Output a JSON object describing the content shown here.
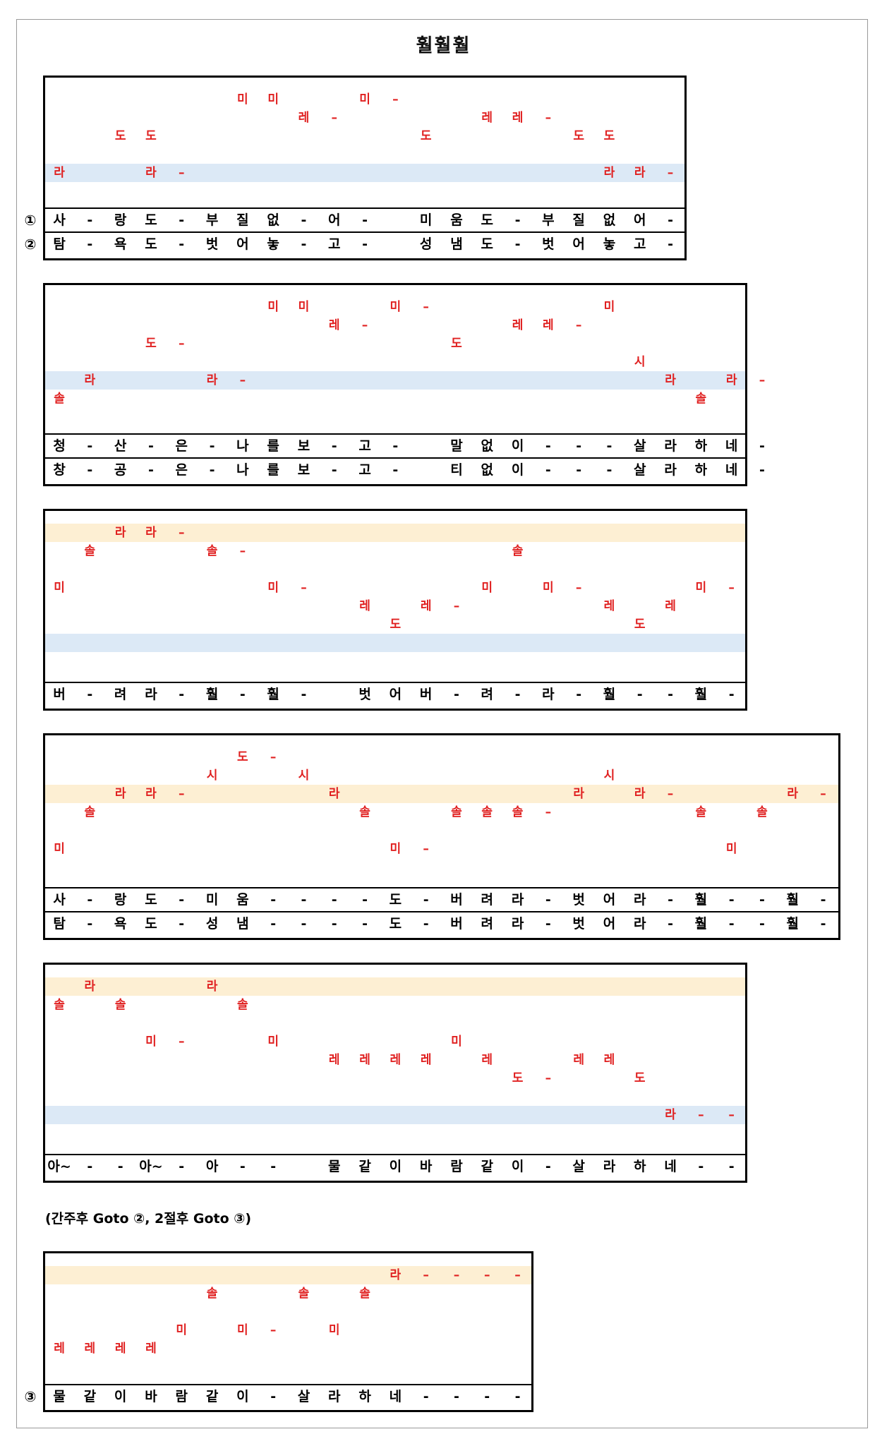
{
  "title": "훨훨훨",
  "instruction": "(간주후 Goto ②, 2절후 Goto ③)",
  "blocks": [
    {
      "notes": [
        {
          "t": "미",
          "c": 6,
          "r": 1
        },
        {
          "t": "미",
          "c": 7,
          "r": 1
        },
        {
          "t": "미",
          "c": 10,
          "r": 1
        },
        {
          "t": "–",
          "c": 11,
          "r": 1
        },
        {
          "t": "레",
          "c": 8,
          "r": 2
        },
        {
          "t": "–",
          "c": 9,
          "r": 2
        },
        {
          "t": "레",
          "c": 14,
          "r": 2
        },
        {
          "t": "레",
          "c": 15,
          "r": 2
        },
        {
          "t": "–",
          "c": 16,
          "r": 2
        },
        {
          "t": "도",
          "c": 2,
          "r": 3
        },
        {
          "t": "도",
          "c": 3,
          "r": 3
        },
        {
          "t": "도",
          "c": 12,
          "r": 3
        },
        {
          "t": "도",
          "c": 17,
          "r": 3
        },
        {
          "t": "도",
          "c": 18,
          "r": 3
        },
        {
          "t": "라",
          "c": 0,
          "r": 5
        },
        {
          "t": "라",
          "c": 3,
          "r": 5
        },
        {
          "t": "–",
          "c": 4,
          "r": 5
        },
        {
          "t": "라",
          "c": 18,
          "r": 5
        },
        {
          "t": "라",
          "c": 19,
          "r": 5
        },
        {
          "t": "–",
          "c": 20,
          "r": 5
        }
      ],
      "lyrics": [
        {
          "mark": "①",
          "cells": [
            "사",
            "-",
            "랑",
            "도",
            "-",
            "부",
            "질",
            "없",
            "-",
            "어",
            "-",
            "",
            "미",
            "움",
            "도",
            "-",
            "부",
            "질",
            "없",
            "어",
            "-"
          ]
        },
        {
          "mark": "②",
          "cells": [
            "탐",
            "-",
            "욕",
            "도",
            "-",
            "벗",
            "어",
            "놓",
            "-",
            "고",
            "-",
            "",
            "성",
            "냄",
            "도",
            "-",
            "벗",
            "어",
            "놓",
            "고",
            "-"
          ]
        }
      ]
    },
    {
      "notes": [
        {
          "t": "미",
          "c": 7,
          "r": 1
        },
        {
          "t": "미",
          "c": 8,
          "r": 1
        },
        {
          "t": "미",
          "c": 11,
          "r": 1
        },
        {
          "t": "–",
          "c": 12,
          "r": 1
        },
        {
          "t": "미",
          "c": 18,
          "r": 1
        },
        {
          "t": "레",
          "c": 9,
          "r": 2
        },
        {
          "t": "–",
          "c": 10,
          "r": 2
        },
        {
          "t": "레",
          "c": 15,
          "r": 2
        },
        {
          "t": "레",
          "c": 16,
          "r": 2
        },
        {
          "t": "–",
          "c": 17,
          "r": 2
        },
        {
          "t": "도",
          "c": 3,
          "r": 3
        },
        {
          "t": "–",
          "c": 4,
          "r": 3
        },
        {
          "t": "도",
          "c": 13,
          "r": 3
        },
        {
          "t": "시",
          "c": 19,
          "r": 4
        },
        {
          "t": "라",
          "c": 1,
          "r": 5
        },
        {
          "t": "라",
          "c": 5,
          "r": 5
        },
        {
          "t": "–",
          "c": 6,
          "r": 5
        },
        {
          "t": "라",
          "c": 20,
          "r": 5
        },
        {
          "t": "라",
          "c": 22,
          "r": 5
        },
        {
          "t": "–",
          "c": 23,
          "r": 5
        },
        {
          "t": "솔",
          "c": 0,
          "r": 6
        },
        {
          "t": "솔",
          "c": 21,
          "r": 6
        }
      ],
      "lyrics": [
        {
          "mark": "",
          "cells": [
            "청",
            "-",
            "산",
            "-",
            "은",
            "-",
            "나",
            "를",
            "보",
            "-",
            "고",
            "-",
            "",
            "말",
            "없",
            "이",
            "-",
            "-",
            "-",
            "살",
            "라",
            "하",
            "네",
            "-"
          ]
        },
        {
          "mark": "",
          "cells": [
            "창",
            "-",
            "공",
            "-",
            "은",
            "-",
            "나",
            "를",
            "보",
            "-",
            "고",
            "-",
            "",
            "티",
            "없",
            "이",
            "-",
            "-",
            "-",
            "살",
            "라",
            "하",
            "네",
            "-"
          ]
        }
      ]
    },
    {
      "notes": [
        {
          "t": "라",
          "c": 2,
          "r": 1
        },
        {
          "t": "라",
          "c": 3,
          "r": 1
        },
        {
          "t": "–",
          "c": 4,
          "r": 1
        },
        {
          "t": "솔",
          "c": 1,
          "r": 2
        },
        {
          "t": "솔",
          "c": 5,
          "r": 2
        },
        {
          "t": "–",
          "c": 6,
          "r": 2
        },
        {
          "t": "솔",
          "c": 15,
          "r": 2
        },
        {
          "t": "미",
          "c": 0,
          "r": 4
        },
        {
          "t": "미",
          "c": 7,
          "r": 4
        },
        {
          "t": "–",
          "c": 8,
          "r": 4
        },
        {
          "t": "미",
          "c": 14,
          "r": 4
        },
        {
          "t": "미",
          "c": 16,
          "r": 4
        },
        {
          "t": "–",
          "c": 17,
          "r": 4
        },
        {
          "t": "미",
          "c": 21,
          "r": 4
        },
        {
          "t": "–",
          "c": 22,
          "r": 4
        },
        {
          "t": "레",
          "c": 10,
          "r": 5
        },
        {
          "t": "레",
          "c": 12,
          "r": 5
        },
        {
          "t": "–",
          "c": 13,
          "r": 5
        },
        {
          "t": "레",
          "c": 18,
          "r": 5
        },
        {
          "t": "레",
          "c": 20,
          "r": 5
        },
        {
          "t": "도",
          "c": 11,
          "r": 6
        },
        {
          "t": "도",
          "c": 19,
          "r": 6
        }
      ],
      "lyrics": [
        {
          "mark": "",
          "cells": [
            "버",
            "-",
            "려",
            "라",
            "-",
            "훨",
            "-",
            "훨",
            "-",
            "",
            "벗",
            "어",
            "버",
            "-",
            "려",
            "-",
            "라",
            "-",
            "훨",
            "-",
            "-",
            "훨",
            "-"
          ]
        }
      ]
    },
    {
      "notes": [
        {
          "t": "도",
          "c": 6,
          "r": 1
        },
        {
          "t": "–",
          "c": 7,
          "r": 1
        },
        {
          "t": "시",
          "c": 5,
          "r": 2
        },
        {
          "t": "시",
          "c": 8,
          "r": 2
        },
        {
          "t": "시",
          "c": 18,
          "r": 2
        },
        {
          "t": "라",
          "c": 2,
          "r": 3
        },
        {
          "t": "라",
          "c": 3,
          "r": 3
        },
        {
          "t": "–",
          "c": 4,
          "r": 3
        },
        {
          "t": "라",
          "c": 9,
          "r": 3
        },
        {
          "t": "라",
          "c": 17,
          "r": 3
        },
        {
          "t": "라",
          "c": 19,
          "r": 3
        },
        {
          "t": "–",
          "c": 20,
          "r": 3
        },
        {
          "t": "라",
          "c": 24,
          "r": 3
        },
        {
          "t": "–",
          "c": 25,
          "r": 3
        },
        {
          "t": "솔",
          "c": 1,
          "r": 4
        },
        {
          "t": "솔",
          "c": 10,
          "r": 4
        },
        {
          "t": "솔",
          "c": 13,
          "r": 4
        },
        {
          "t": "솔",
          "c": 14,
          "r": 4
        },
        {
          "t": "솔",
          "c": 15,
          "r": 4
        },
        {
          "t": "–",
          "c": 16,
          "r": 4
        },
        {
          "t": "솔",
          "c": 21,
          "r": 4
        },
        {
          "t": "솔",
          "c": 23,
          "r": 4
        },
        {
          "t": "미",
          "c": 0,
          "r": 6
        },
        {
          "t": "미",
          "c": 11,
          "r": 6
        },
        {
          "t": "–",
          "c": 12,
          "r": 6
        },
        {
          "t": "미",
          "c": 22,
          "r": 6
        }
      ],
      "lyrics": [
        {
          "mark": "",
          "cells": [
            "사",
            "-",
            "랑",
            "도",
            "-",
            "미",
            "움",
            "-",
            "-",
            "-",
            "-",
            "도",
            "-",
            "버",
            "려",
            "라",
            "-",
            "벗",
            "어",
            "라",
            "-",
            "훨",
            "-",
            "-",
            "훨",
            "-"
          ]
        },
        {
          "mark": "",
          "cells": [
            "탐",
            "-",
            "욕",
            "도",
            "-",
            "성",
            "냄",
            "-",
            "-",
            "-",
            "-",
            "도",
            "-",
            "버",
            "려",
            "라",
            "-",
            "벗",
            "어",
            "라",
            "-",
            "훨",
            "-",
            "-",
            "훨",
            "-"
          ]
        }
      ]
    },
    {
      "notes": [
        {
          "t": "라",
          "c": 1,
          "r": 1
        },
        {
          "t": "라",
          "c": 5,
          "r": 1
        },
        {
          "t": "솔",
          "c": 0,
          "r": 2
        },
        {
          "t": "솔",
          "c": 2,
          "r": 2
        },
        {
          "t": "솔",
          "c": 6,
          "r": 2
        },
        {
          "t": "미",
          "c": 3,
          "r": 4
        },
        {
          "t": "–",
          "c": 4,
          "r": 4
        },
        {
          "t": "미",
          "c": 7,
          "r": 4
        },
        {
          "t": "미",
          "c": 13,
          "r": 4
        },
        {
          "t": "레",
          "c": 9,
          "r": 5
        },
        {
          "t": "레",
          "c": 10,
          "r": 5
        },
        {
          "t": "레",
          "c": 11,
          "r": 5
        },
        {
          "t": "레",
          "c": 12,
          "r": 5
        },
        {
          "t": "레",
          "c": 14,
          "r": 5
        },
        {
          "t": "레",
          "c": 17,
          "r": 5
        },
        {
          "t": "레",
          "c": 18,
          "r": 5
        },
        {
          "t": "도",
          "c": 15,
          "r": 6
        },
        {
          "t": "–",
          "c": 16,
          "r": 6
        },
        {
          "t": "도",
          "c": 19,
          "r": 6
        },
        {
          "t": "라",
          "c": 20,
          "r": 8
        },
        {
          "t": "–",
          "c": 21,
          "r": 8
        },
        {
          "t": "–",
          "c": 22,
          "r": 8
        }
      ],
      "lyrics": [
        {
          "mark": "",
          "cells": [
            "아~",
            "-",
            "-",
            "아~",
            "-",
            "아",
            "-",
            "-",
            "",
            "물",
            "같",
            "이",
            "바",
            "람",
            "같",
            "이",
            "-",
            "살",
            "라",
            "하",
            "네",
            "-",
            "-"
          ]
        }
      ]
    },
    {
      "notes": [
        {
          "t": "라",
          "c": 11,
          "r": 1
        },
        {
          "t": "–",
          "c": 12,
          "r": 1
        },
        {
          "t": "–",
          "c": 13,
          "r": 1
        },
        {
          "t": "–",
          "c": 14,
          "r": 1
        },
        {
          "t": "–",
          "c": 15,
          "r": 1
        },
        {
          "t": "솔",
          "c": 5,
          "r": 2
        },
        {
          "t": "솔",
          "c": 8,
          "r": 2
        },
        {
          "t": "솔",
          "c": 10,
          "r": 2
        },
        {
          "t": "미",
          "c": 4,
          "r": 4
        },
        {
          "t": "미",
          "c": 6,
          "r": 4
        },
        {
          "t": "–",
          "c": 7,
          "r": 4
        },
        {
          "t": "미",
          "c": 9,
          "r": 4
        },
        {
          "t": "레",
          "c": 0,
          "r": 5
        },
        {
          "t": "레",
          "c": 1,
          "r": 5
        },
        {
          "t": "레",
          "c": 2,
          "r": 5
        },
        {
          "t": "레",
          "c": 3,
          "r": 5
        }
      ],
      "lyrics": [
        {
          "mark": "③",
          "cells": [
            "물",
            "같",
            "이",
            "바",
            "람",
            "같",
            "이",
            "-",
            "살",
            "라",
            "하",
            "네",
            "-",
            "-",
            "-",
            "-"
          ]
        }
      ]
    }
  ]
}
